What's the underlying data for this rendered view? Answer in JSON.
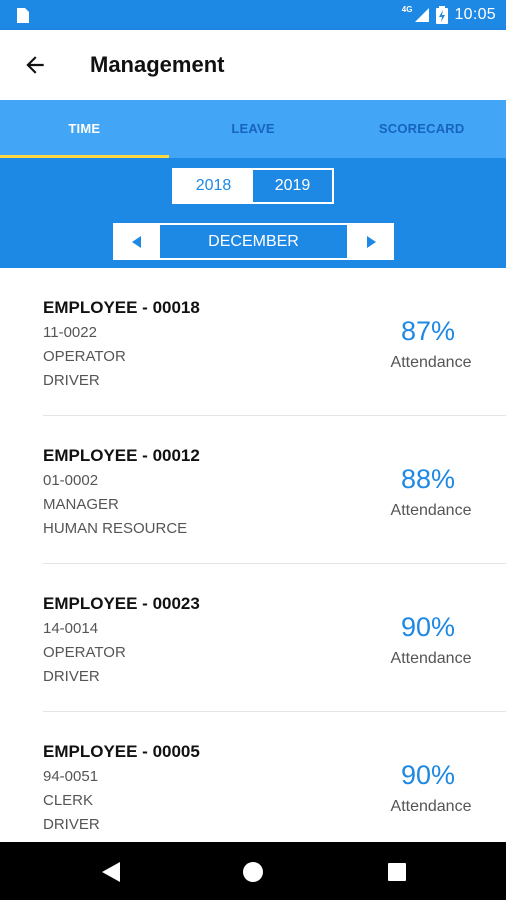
{
  "status": {
    "network": "4G",
    "time": "10:05"
  },
  "appbar": {
    "title": "Management"
  },
  "tabs": [
    "TIME",
    "LEAVE",
    "SCORECARD"
  ],
  "years": [
    "2018",
    "2019"
  ],
  "selected_year": "2019",
  "month": "DECEMBER",
  "employees": [
    {
      "name": "EMPLOYEE - 00018",
      "code": "11-0022",
      "role": "OPERATOR",
      "dept": "DRIVER",
      "percent": "87%",
      "label": "Attendance"
    },
    {
      "name": "EMPLOYEE - 00012",
      "code": "01-0002",
      "role": "MANAGER",
      "dept": "HUMAN RESOURCE",
      "percent": "88%",
      "label": "Attendance"
    },
    {
      "name": "EMPLOYEE - 00023",
      "code": "14-0014",
      "role": "OPERATOR",
      "dept": "DRIVER",
      "percent": "90%",
      "label": "Attendance"
    },
    {
      "name": "EMPLOYEE - 00005",
      "code": "94-0051",
      "role": "CLERK",
      "dept": "DRIVER",
      "percent": "90%",
      "label": "Attendance"
    }
  ],
  "colors": {
    "primary": "#1e88e5",
    "tabbar": "#42a5f5",
    "indicator": "#ffd740"
  }
}
